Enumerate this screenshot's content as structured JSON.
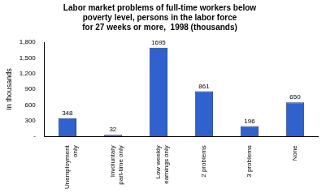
{
  "chart_data": {
    "type": "bar",
    "title": [
      "Labor market problems of full-time workers below",
      "poverty level, persons in the labor force",
      "for 27 weeks or more,  1998 (thousands)"
    ],
    "y_label": "In thousands",
    "categories": [
      "Unemployment only",
      "Involuntary part-time only",
      "Low weekly earnings only",
      "2 problems",
      "3 problems",
      "None"
    ],
    "values": [
      348,
      32,
      1695,
      861,
      196,
      650
    ],
    "color": "#2f62cc",
    "ylim": [
      0,
      1800
    ],
    "yticks": [
      {
        "value": 0,
        "label": "-"
      },
      300,
      600,
      900,
      {
        "value": 1200,
        "label": "1,200"
      },
      {
        "value": 1500,
        "label": "1,500"
      },
      {
        "value": 1800,
        "label": "1,800"
      }
    ],
    "grid": false,
    "data_labels": true
  }
}
